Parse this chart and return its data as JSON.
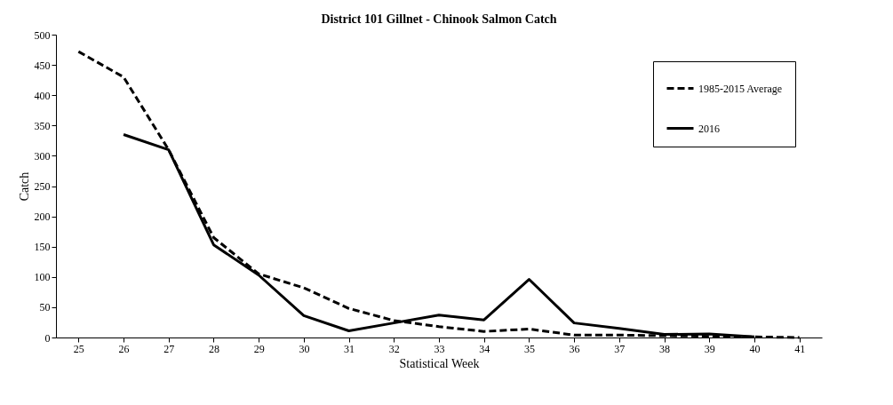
{
  "chart_data": {
    "type": "line",
    "title": "District 101 Gillnet - Chinook  Salmon Catch",
    "xlabel": "Statistical Week",
    "ylabel": "Catch",
    "categories": [
      "25",
      "26",
      "27",
      "28",
      "29",
      "30",
      "31",
      "32",
      "33",
      "34",
      "35",
      "36",
      "37",
      "38",
      "39",
      "40",
      "41"
    ],
    "series": [
      {
        "name": "1985-2015 Average",
        "color": "#000000",
        "line_style": "dashed",
        "values": [
          472,
          430,
          310,
          165,
          105,
          82,
          48,
          28,
          18,
          10,
          14,
          4,
          4,
          3,
          2,
          1,
          0
        ]
      },
      {
        "name": "2016",
        "color": "#000000",
        "line_style": "solid",
        "values": [
          null,
          335,
          310,
          153,
          103,
          36,
          11,
          24,
          37,
          29,
          96,
          24,
          15,
          5,
          6,
          1,
          null
        ]
      }
    ],
    "ylim": [
      0,
      500
    ],
    "yticks": [
      0,
      50,
      100,
      150,
      200,
      250,
      300,
      350,
      400,
      450,
      500
    ],
    "grid": false,
    "legend": "top right",
    "marker": "none"
  }
}
